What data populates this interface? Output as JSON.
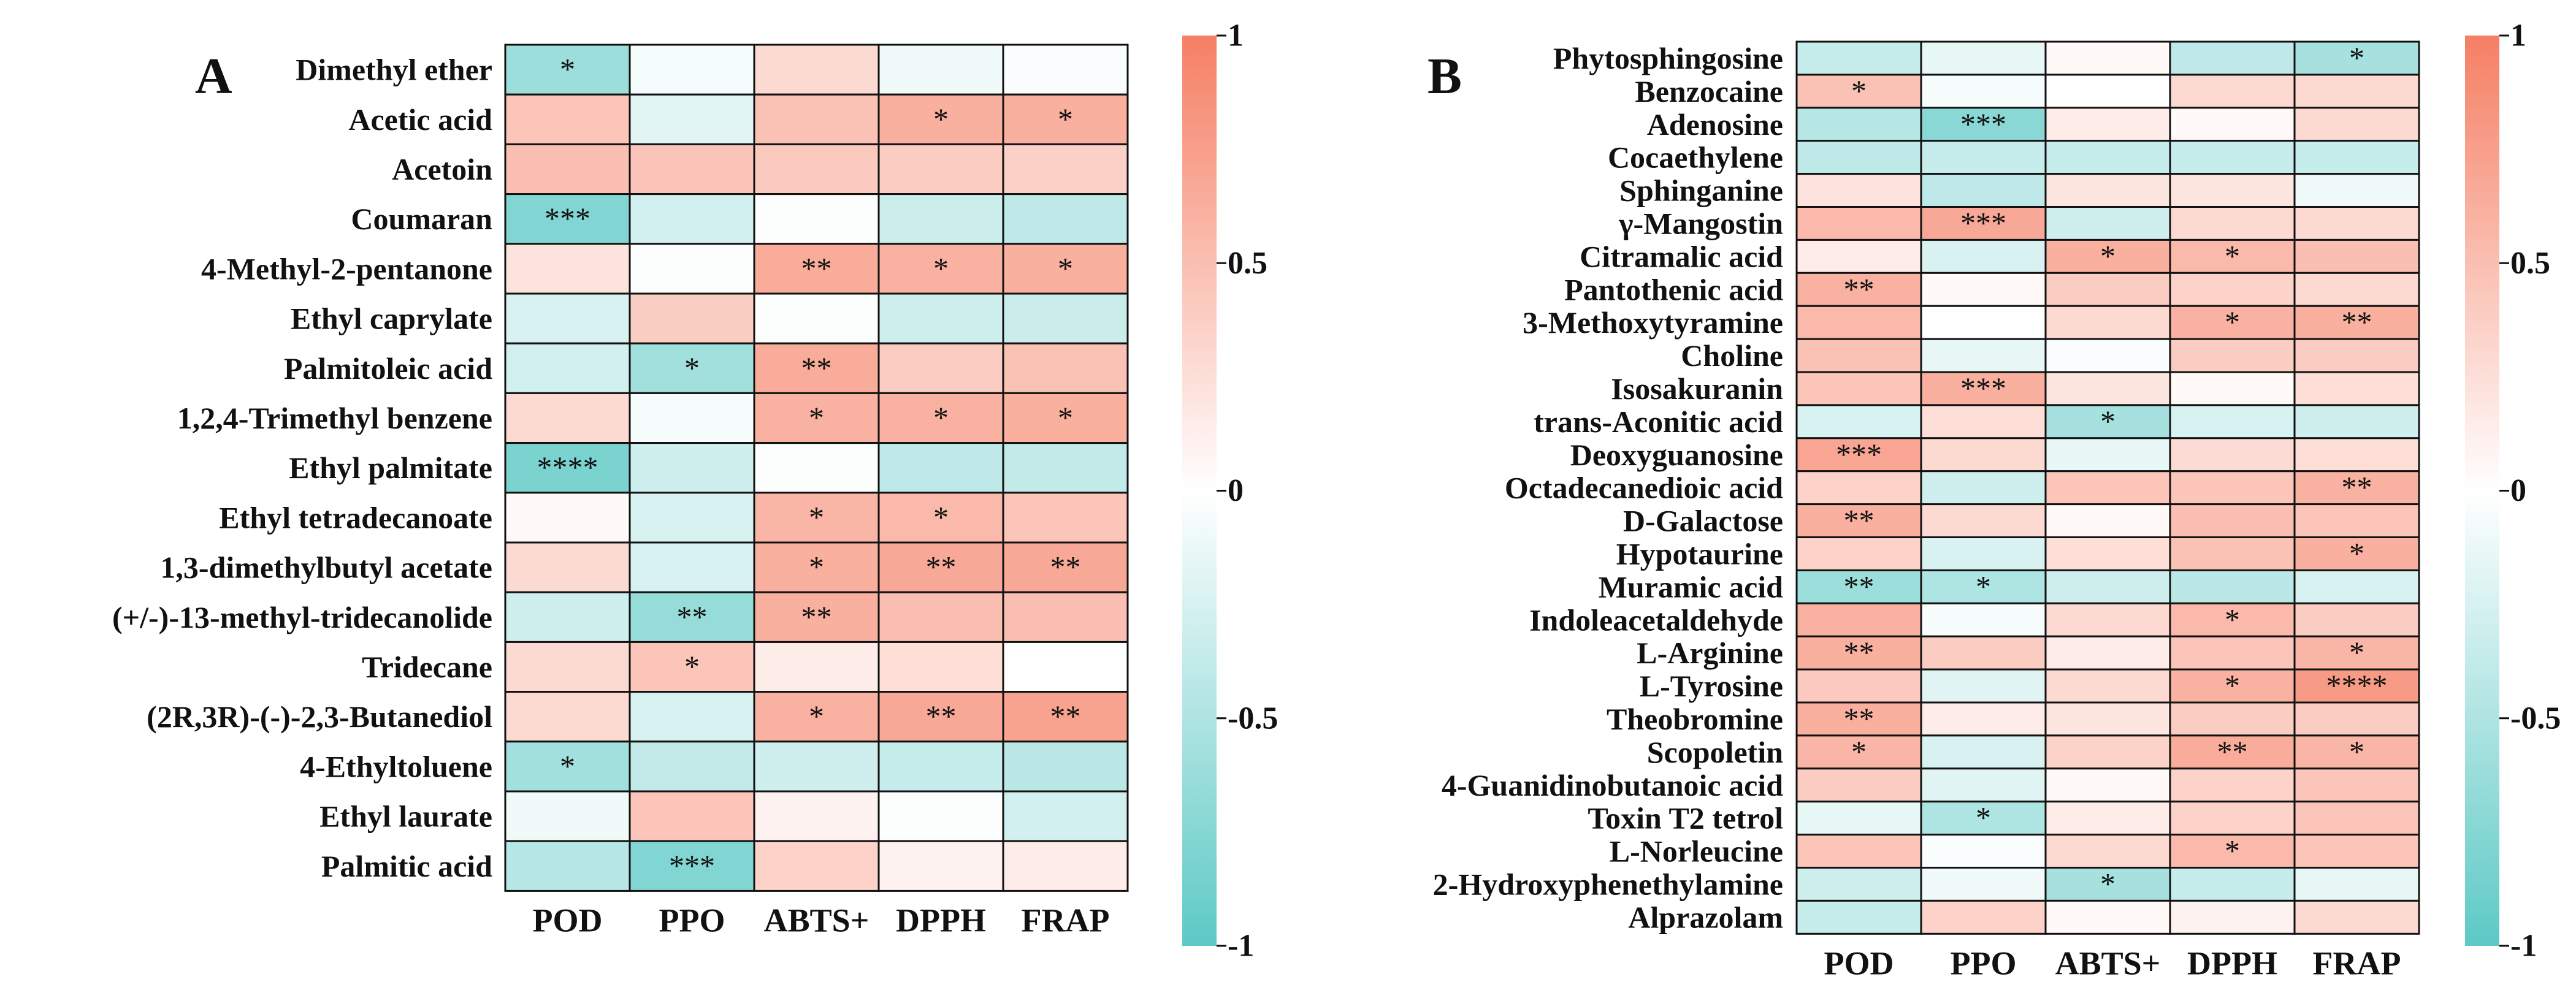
{
  "chart_data": [
    {
      "type": "heatmap",
      "panel_label": "A",
      "columns": [
        "POD",
        "PPO",
        "ABTS+",
        "DPPH",
        "FRAP"
      ],
      "rows": [
        {
          "name": "Dimethyl ether",
          "values": [
            -0.62,
            -0.06,
            0.3,
            -0.1,
            -0.03
          ],
          "stars": [
            "*",
            "",
            "",
            "",
            ""
          ]
        },
        {
          "name": "Acetic acid",
          "values": [
            0.45,
            -0.18,
            0.48,
            0.62,
            0.62
          ],
          "stars": [
            "",
            "",
            "",
            "*",
            "*"
          ]
        },
        {
          "name": "Acetoin",
          "values": [
            0.5,
            0.46,
            0.42,
            0.4,
            0.36
          ],
          "stars": [
            "",
            "",
            "",
            "",
            ""
          ]
        },
        {
          "name": "Coumaran",
          "values": [
            -0.78,
            -0.28,
            -0.02,
            -0.32,
            -0.4
          ],
          "stars": [
            "***",
            "",
            "",
            "",
            ""
          ]
        },
        {
          "name": "4-Methyl-2-pentanone",
          "values": [
            0.22,
            -0.02,
            0.65,
            0.6,
            0.62
          ],
          "stars": [
            "",
            "",
            "**",
            "*",
            "*"
          ]
        },
        {
          "name": "Ethyl caprylate",
          "values": [
            -0.25,
            0.38,
            -0.02,
            -0.3,
            -0.33
          ],
          "stars": [
            "",
            "",
            "",
            "",
            ""
          ]
        },
        {
          "name": "Palmitoleic acid",
          "values": [
            -0.28,
            -0.58,
            0.65,
            0.4,
            0.48
          ],
          "stars": [
            "",
            "*",
            "**",
            "",
            ""
          ]
        },
        {
          "name": "1,2,4-Trimethyl benzene",
          "values": [
            0.3,
            -0.05,
            0.6,
            0.6,
            0.62
          ],
          "stars": [
            "",
            "",
            "*",
            "*",
            "*"
          ]
        },
        {
          "name": "Ethyl palmitate",
          "values": [
            -0.82,
            -0.3,
            -0.02,
            -0.4,
            -0.38
          ],
          "stars": [
            "****",
            "",
            "",
            "",
            ""
          ]
        },
        {
          "name": "Ethyl tetradecanoate",
          "values": [
            0.05,
            -0.25,
            0.58,
            0.55,
            0.45
          ],
          "stars": [
            "",
            "",
            "*",
            "*",
            ""
          ]
        },
        {
          "name": "1,3-dimethylbutyl acetate",
          "values": [
            0.3,
            -0.25,
            0.62,
            0.68,
            0.68
          ],
          "stars": [
            "",
            "",
            "*",
            "**",
            "**"
          ]
        },
        {
          "name": "(+/-)-13-methyl-tridecanolide",
          "values": [
            -0.3,
            -0.65,
            0.62,
            0.5,
            0.5
          ],
          "stars": [
            "",
            "**",
            "**",
            "",
            ""
          ]
        },
        {
          "name": "Tridecane",
          "values": [
            0.3,
            0.45,
            0.15,
            0.25,
            0.0
          ],
          "stars": [
            "",
            "*",
            "",
            "",
            ""
          ]
        },
        {
          "name": "(2R,3R)-(-)-2,3-Butanediol",
          "values": [
            0.3,
            -0.25,
            0.6,
            0.68,
            0.72
          ],
          "stars": [
            "",
            "",
            "*",
            "**",
            "**"
          ]
        },
        {
          "name": "4-Ethyltoluene",
          "values": [
            -0.58,
            -0.38,
            -0.3,
            -0.35,
            -0.42
          ],
          "stars": [
            "*",
            "",
            "",
            "",
            ""
          ]
        },
        {
          "name": "Ethyl laurate",
          "values": [
            -0.1,
            0.45,
            0.1,
            -0.02,
            -0.28
          ],
          "stars": [
            "",
            "",
            "",
            "",
            ""
          ]
        },
        {
          "name": "Palmitic acid",
          "values": [
            -0.45,
            -0.78,
            0.35,
            0.1,
            0.15
          ],
          "stars": [
            "",
            "***",
            "",
            "",
            ""
          ]
        }
      ],
      "colorbar": {
        "ticks": [
          "1",
          "0.5",
          "0",
          "-0.5",
          "-1"
        ],
        "range": [
          -1,
          1
        ]
      },
      "colors": {
        "negative": "#5dc9c5",
        "zero": "#ffffff",
        "positive": "#f57f64"
      }
    },
    {
      "type": "heatmap",
      "panel_label": "B",
      "columns": [
        "POD",
        "PPO",
        "ABTS+",
        "DPPH",
        "FRAP"
      ],
      "rows": [
        {
          "name": "Phytosphingosine",
          "values": [
            -0.35,
            -0.15,
            0.05,
            -0.4,
            -0.55
          ],
          "stars": [
            "",
            "",
            "",
            "",
            "*"
          ]
        },
        {
          "name": "Benzocaine",
          "values": [
            0.48,
            -0.05,
            0.0,
            0.3,
            0.3
          ],
          "stars": [
            "*",
            "",
            "",
            "",
            ""
          ]
        },
        {
          "name": "Adenosine",
          "values": [
            -0.45,
            -0.72,
            0.15,
            0.05,
            0.3
          ],
          "stars": [
            "",
            "***",
            "",
            "",
            ""
          ]
        },
        {
          "name": "Cocaethylene",
          "values": [
            -0.4,
            -0.35,
            -0.35,
            -0.35,
            -0.35
          ],
          "stars": [
            "",
            "",
            "",
            "",
            ""
          ]
        },
        {
          "name": "Sphinganine",
          "values": [
            0.22,
            -0.4,
            0.2,
            0.2,
            -0.1
          ],
          "stars": [
            "",
            "",
            "",
            "",
            ""
          ]
        },
        {
          "name": "γ-Mangostin",
          "values": [
            0.55,
            0.68,
            -0.3,
            0.3,
            0.3
          ],
          "stars": [
            "",
            "***",
            "",
            "",
            ""
          ]
        },
        {
          "name": "Citramalic acid",
          "values": [
            0.15,
            -0.25,
            0.62,
            0.55,
            0.5
          ],
          "stars": [
            "",
            "",
            "*",
            "*",
            ""
          ]
        },
        {
          "name": "Pantothenic acid",
          "values": [
            0.6,
            0.05,
            0.4,
            0.35,
            0.3
          ],
          "stars": [
            "**",
            "",
            "",
            "",
            ""
          ]
        },
        {
          "name": "3-Methoxytyramine",
          "values": [
            0.55,
            0.0,
            0.3,
            0.6,
            0.62
          ],
          "stars": [
            "",
            "",
            "",
            "*",
            "**"
          ]
        },
        {
          "name": "Choline",
          "values": [
            0.48,
            -0.15,
            -0.03,
            0.4,
            0.4
          ],
          "stars": [
            "",
            "",
            "",
            "",
            ""
          ]
        },
        {
          "name": "Isosakuranin",
          "values": [
            0.45,
            0.62,
            0.2,
            0.05,
            0.25
          ],
          "stars": [
            "",
            "***",
            "",
            "",
            ""
          ]
        },
        {
          "name": "trans-Aconitic acid",
          "values": [
            -0.25,
            0.25,
            -0.55,
            -0.25,
            -0.3
          ],
          "stars": [
            "",
            "",
            "*",
            "",
            ""
          ]
        },
        {
          "name": "Deoxyguanosine",
          "values": [
            0.7,
            0.3,
            -0.15,
            0.28,
            0.25
          ],
          "stars": [
            "***",
            "",
            "",
            "",
            ""
          ]
        },
        {
          "name": "Octadecanedioic acid",
          "values": [
            0.35,
            -0.3,
            0.45,
            0.45,
            0.6
          ],
          "stars": [
            "",
            "",
            "",
            "",
            "**"
          ]
        },
        {
          "name": "D-Galactose",
          "values": [
            0.62,
            0.3,
            0.05,
            0.5,
            0.45
          ],
          "stars": [
            "**",
            "",
            "",
            "",
            ""
          ]
        },
        {
          "name": "Hypotaurine",
          "values": [
            0.35,
            -0.25,
            0.25,
            0.48,
            0.62
          ],
          "stars": [
            "",
            "",
            "",
            "",
            "*"
          ]
        },
        {
          "name": "Muramic acid",
          "values": [
            -0.62,
            -0.5,
            -0.3,
            -0.42,
            -0.25
          ],
          "stars": [
            "**",
            "*",
            "",
            "",
            ""
          ]
        },
        {
          "name": "Indoleacetaldehyde",
          "values": [
            0.6,
            -0.05,
            0.3,
            0.55,
            0.4
          ],
          "stars": [
            "",
            "",
            "",
            "*",
            ""
          ]
        },
        {
          "name": "L-Arginine",
          "values": [
            0.62,
            0.4,
            0.15,
            0.45,
            0.58
          ],
          "stars": [
            "**",
            "",
            "",
            "",
            "*"
          ]
        },
        {
          "name": "L-Tyrosine",
          "values": [
            0.42,
            -0.2,
            0.3,
            0.6,
            0.78
          ],
          "stars": [
            "",
            "",
            "",
            "*",
            "****"
          ]
        },
        {
          "name": "Theobromine",
          "values": [
            0.62,
            0.15,
            0.2,
            0.4,
            0.4
          ],
          "stars": [
            "**",
            "",
            "",
            "",
            ""
          ]
        },
        {
          "name": "Scopoletin",
          "values": [
            0.58,
            -0.25,
            0.35,
            0.65,
            0.58
          ],
          "stars": [
            "*",
            "",
            "",
            "**",
            "*"
          ]
        },
        {
          "name": "4-Guanidinobutanoic acid",
          "values": [
            0.4,
            -0.2,
            0.05,
            0.35,
            0.45
          ],
          "stars": [
            "",
            "",
            "",
            "",
            ""
          ]
        },
        {
          "name": "Toxin T2 tetrol",
          "values": [
            -0.15,
            -0.5,
            0.15,
            0.35,
            0.45
          ],
          "stars": [
            "",
            "*",
            "",
            "",
            ""
          ]
        },
        {
          "name": "L-Norleucine",
          "values": [
            0.45,
            -0.03,
            0.3,
            0.55,
            0.45
          ],
          "stars": [
            "",
            "",
            "",
            "*",
            ""
          ]
        },
        {
          "name": "2-Hydroxyphenethylamine",
          "values": [
            -0.3,
            -0.1,
            -0.55,
            -0.35,
            -0.15
          ],
          "stars": [
            "",
            "",
            "*",
            "",
            ""
          ]
        },
        {
          "name": "Alprazolam",
          "values": [
            -0.35,
            0.35,
            0.05,
            0.1,
            0.3
          ],
          "stars": [
            "",
            "",
            "",
            "",
            ""
          ]
        }
      ],
      "colorbar": {
        "ticks": [
          "1",
          "0.5",
          "0",
          "-0.5",
          "-1"
        ],
        "range": [
          -1,
          1
        ]
      },
      "colors": {
        "negative": "#5dc9c5",
        "zero": "#ffffff",
        "positive": "#f57f64"
      }
    }
  ]
}
